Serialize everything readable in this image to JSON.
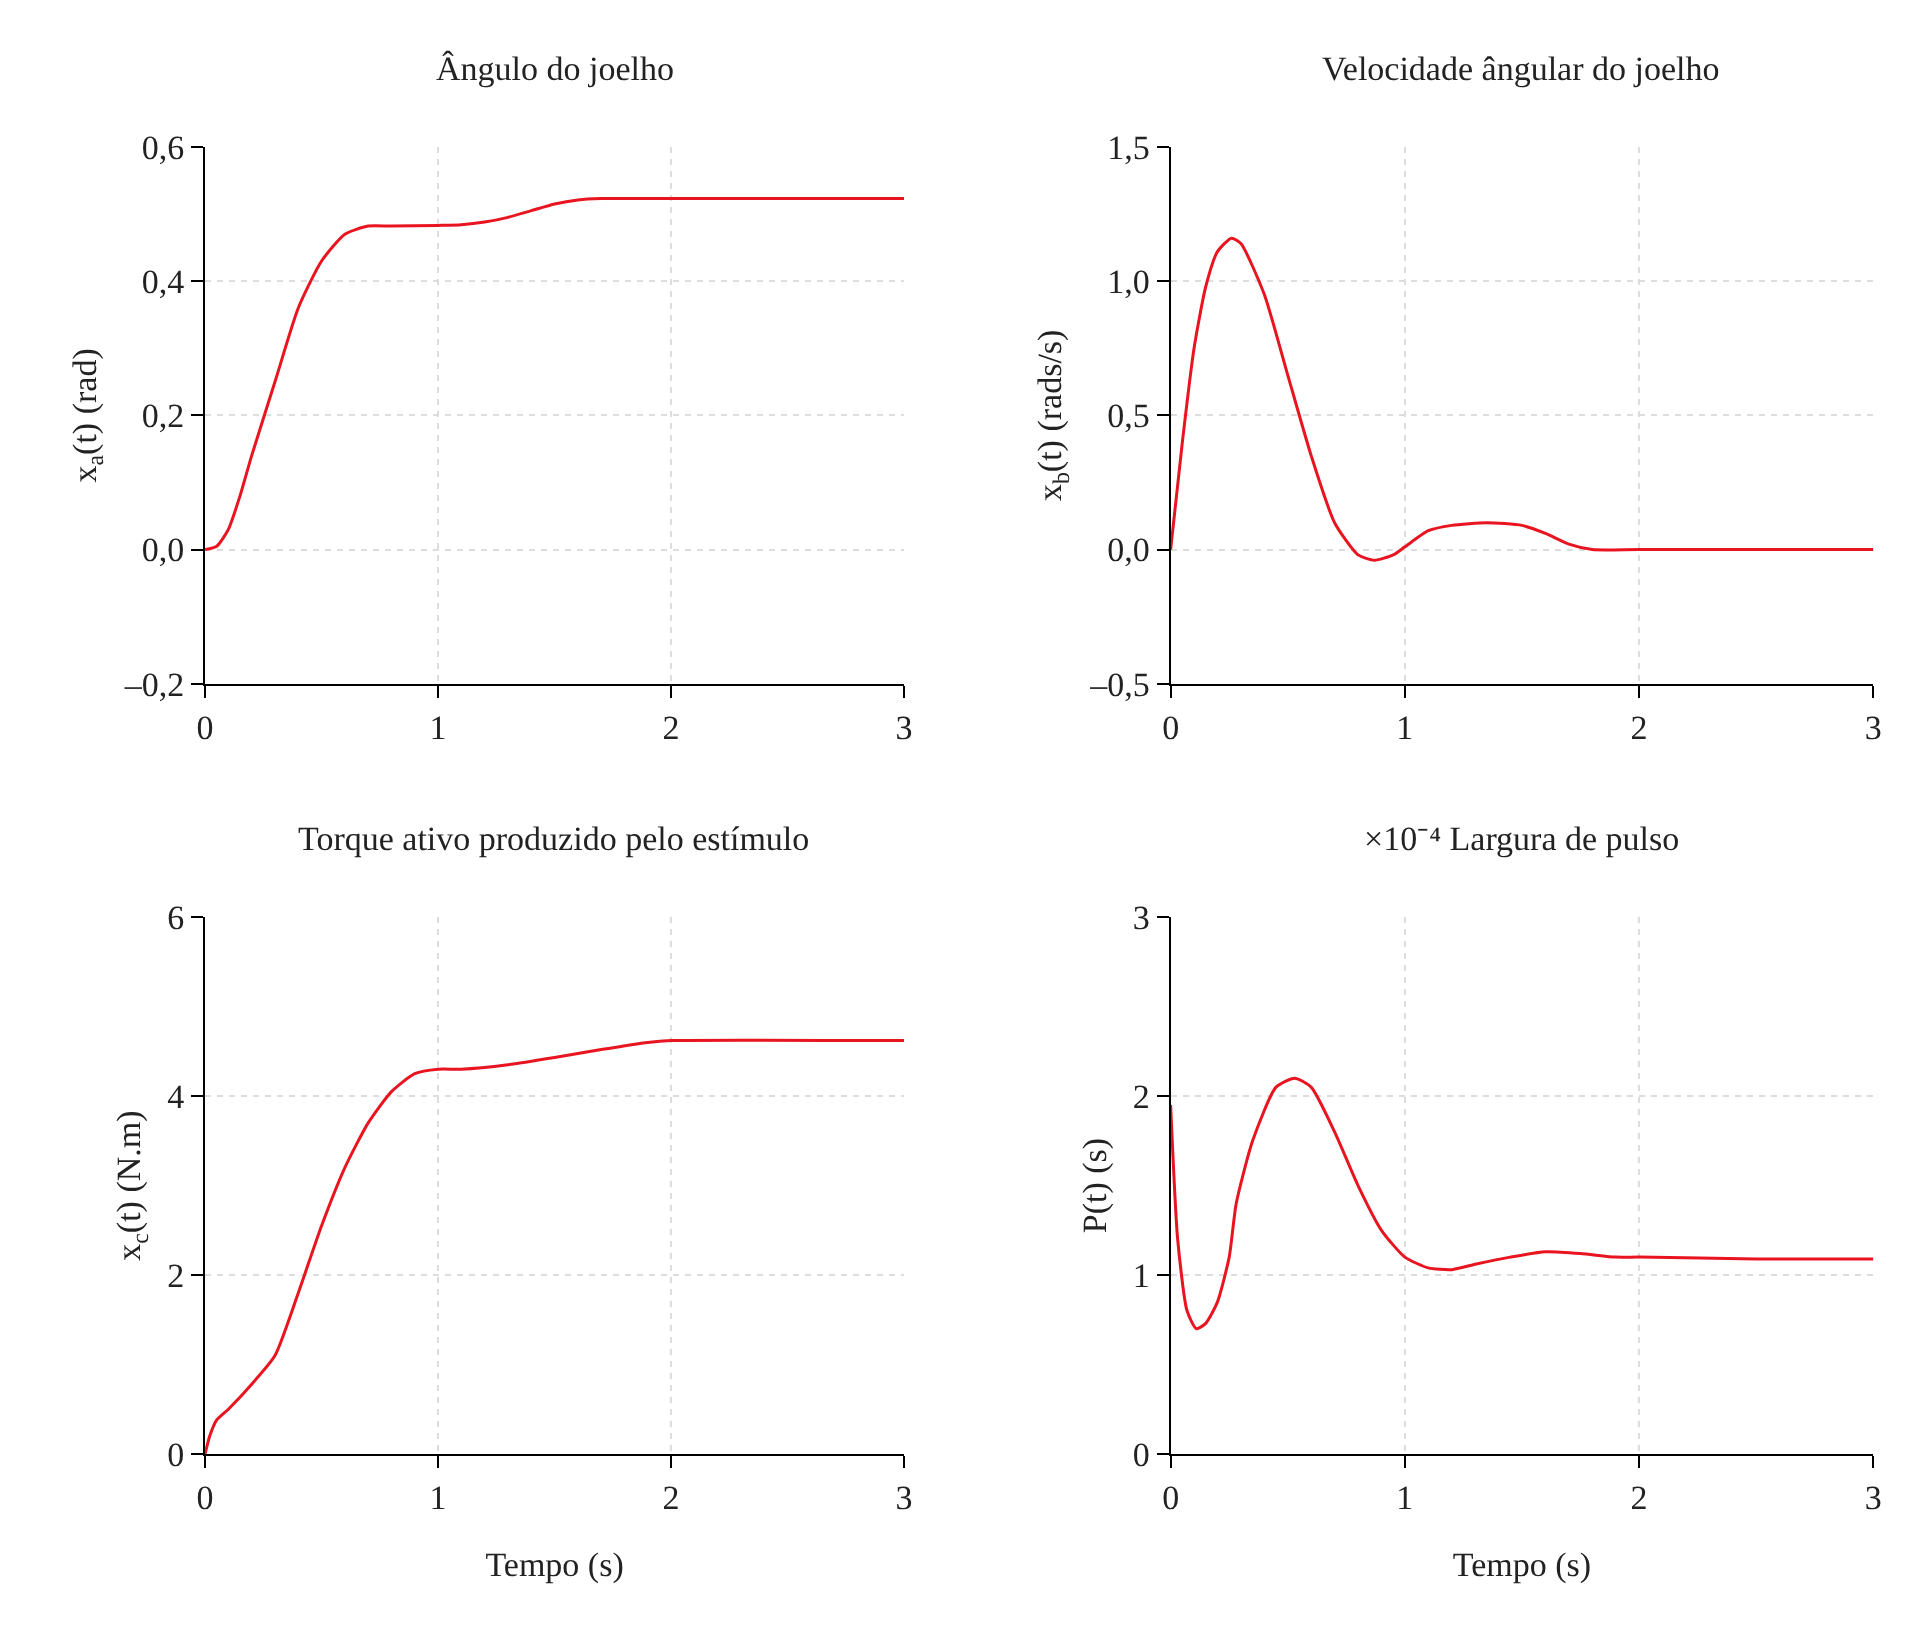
{
  "chart_data": [
    {
      "type": "line",
      "title": "Ângulo do joelho",
      "ylabel": "x$_{a}$(t) (rad)",
      "color": "#e8141f",
      "grid": true,
      "x": [
        0,
        0.05,
        0.1,
        0.15,
        0.2,
        0.3,
        0.4,
        0.5,
        0.6,
        0.7,
        0.8,
        1.0,
        1.1,
        1.2,
        1.3,
        1.4,
        1.5,
        1.6,
        1.7,
        2.0,
        3.0
      ],
      "values": [
        0,
        0.005,
        0.03,
        0.08,
        0.14,
        0.25,
        0.36,
        0.43,
        0.47,
        0.482,
        0.482,
        0.483,
        0.484,
        0.488,
        0.495,
        0.505,
        0.515,
        0.521,
        0.523,
        0.523,
        0.523
      ],
      "xlim": [
        0,
        3
      ],
      "xticks": [
        0,
        1,
        2,
        3
      ],
      "ylim": [
        -0.2,
        0.6
      ],
      "yticks": [
        {
          "value": -0.2,
          "label": "–0,2"
        },
        {
          "value": 0,
          "label": "0,0"
        },
        {
          "value": 0.2,
          "label": "0,2"
        },
        {
          "value": 0.4,
          "label": "0,4"
        },
        {
          "value": 0.6,
          "label": "0,6"
        }
      ]
    },
    {
      "type": "line",
      "title": "Velocidade ângular do joelho",
      "ylabel": "x$_{b}$(t) (rads/s)",
      "color": "#e8141f",
      "grid": true,
      "x": [
        0,
        0.05,
        0.1,
        0.15,
        0.2,
        0.26,
        0.3,
        0.4,
        0.5,
        0.6,
        0.7,
        0.8,
        0.87,
        0.95,
        1.0,
        1.1,
        1.2,
        1.35,
        1.5,
        1.6,
        1.7,
        1.8,
        2.0,
        3.0
      ],
      "values": [
        0,
        0.4,
        0.75,
        0.98,
        1.11,
        1.16,
        1.14,
        0.95,
        0.65,
        0.35,
        0.1,
        -0.02,
        -0.04,
        -0.02,
        0.01,
        0.07,
        0.09,
        0.1,
        0.09,
        0.06,
        0.02,
        0.0,
        0.0,
        0.0
      ],
      "xlim": [
        0,
        3
      ],
      "xticks": [
        0,
        1,
        2,
        3
      ],
      "ylim": [
        -0.5,
        1.5
      ],
      "yticks": [
        {
          "value": -0.5,
          "label": "–0,5"
        },
        {
          "value": 0,
          "label": "0,0"
        },
        {
          "value": 0.5,
          "label": "0,5"
        },
        {
          "value": 1.0,
          "label": "1,0"
        },
        {
          "value": 1.5,
          "label": "1,5"
        }
      ]
    },
    {
      "type": "line",
      "title": "Torque ativo produzido pelo estímulo",
      "xlabel": "Tempo (s)",
      "ylabel": "x$_{c}$(t) (N.m)",
      "color": "#e8141f",
      "grid": true,
      "x": [
        0,
        0.02,
        0.05,
        0.1,
        0.2,
        0.3,
        0.4,
        0.5,
        0.6,
        0.7,
        0.8,
        0.9,
        1.0,
        1.1,
        1.3,
        1.5,
        1.7,
        1.9,
        2.0,
        3.0
      ],
      "values": [
        0,
        0.2,
        0.38,
        0.5,
        0.78,
        1.1,
        1.8,
        2.55,
        3.2,
        3.7,
        4.05,
        4.25,
        4.3,
        4.3,
        4.35,
        4.43,
        4.52,
        4.6,
        4.62,
        4.62
      ],
      "xlim": [
        0,
        3
      ],
      "xticks": [
        0,
        1,
        2,
        3
      ],
      "ylim": [
        0,
        6
      ],
      "yticks": [
        0,
        2,
        4,
        6
      ]
    },
    {
      "type": "line",
      "title": "×10⁻⁴ Largura de pulso",
      "xlabel": "Tempo (s)",
      "ylabel": "P(t) (s)",
      "color": "#e8141f",
      "grid": true,
      "x": [
        0,
        0.03,
        0.07,
        0.11,
        0.15,
        0.2,
        0.25,
        0.28,
        0.35,
        0.45,
        0.53,
        0.6,
        0.7,
        0.8,
        0.9,
        1.0,
        1.1,
        1.2,
        1.3,
        1.45,
        1.6,
        1.75,
        1.9,
        2.0,
        2.5,
        3.0
      ],
      "values": [
        1.95,
        1.2,
        0.8,
        0.7,
        0.73,
        0.85,
        1.1,
        1.4,
        1.75,
        2.05,
        2.1,
        2.05,
        1.8,
        1.5,
        1.25,
        1.1,
        1.04,
        1.03,
        1.06,
        1.1,
        1.13,
        1.12,
        1.1,
        1.1,
        1.09,
        1.09
      ],
      "xlim": [
        0,
        3
      ],
      "xticks": [
        0,
        1,
        2,
        3
      ],
      "ylim": [
        0,
        3
      ],
      "yticks": [
        0,
        1,
        2,
        3
      ]
    }
  ]
}
